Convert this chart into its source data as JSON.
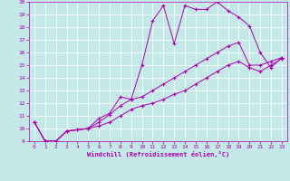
{
  "xlabel": "Windchill (Refroidissement éolien,°C)",
  "bg_color": "#c4e8e8",
  "line_color": "#aa00aa",
  "marker": "+",
  "xlim": [
    -0.5,
    23.5
  ],
  "ylim": [
    9,
    20
  ],
  "xticks": [
    0,
    1,
    2,
    3,
    4,
    5,
    6,
    7,
    8,
    9,
    10,
    11,
    12,
    13,
    14,
    15,
    16,
    17,
    18,
    19,
    20,
    21,
    22,
    23
  ],
  "yticks": [
    9,
    10,
    11,
    12,
    13,
    14,
    15,
    16,
    17,
    18,
    19,
    20
  ],
  "x": [
    0,
    1,
    2,
    3,
    4,
    5,
    6,
    7,
    8,
    9,
    10,
    11,
    12,
    13,
    14,
    15,
    16,
    17,
    18,
    19,
    20,
    21,
    22,
    23
  ],
  "line1": [
    10.5,
    9.0,
    9.0,
    9.8,
    9.9,
    10.0,
    10.8,
    11.2,
    12.5,
    12.3,
    15.0,
    18.5,
    19.7,
    16.7,
    19.7,
    19.4,
    19.4,
    20.0,
    19.3,
    18.8,
    18.1,
    16.0,
    14.8,
    15.6
  ],
  "line2": [
    10.5,
    9.0,
    9.0,
    9.8,
    9.9,
    10.0,
    10.5,
    11.1,
    11.8,
    12.3,
    12.5,
    13.0,
    13.5,
    14.0,
    14.5,
    15.0,
    15.5,
    16.0,
    16.5,
    16.8,
    15.0,
    15.0,
    15.3,
    15.6
  ],
  "line3": [
    10.5,
    9.0,
    9.0,
    9.8,
    9.9,
    10.0,
    10.2,
    10.5,
    11.0,
    11.5,
    11.8,
    12.0,
    12.3,
    12.7,
    13.0,
    13.5,
    14.0,
    14.5,
    15.0,
    15.3,
    14.8,
    14.5,
    15.0,
    15.5
  ]
}
